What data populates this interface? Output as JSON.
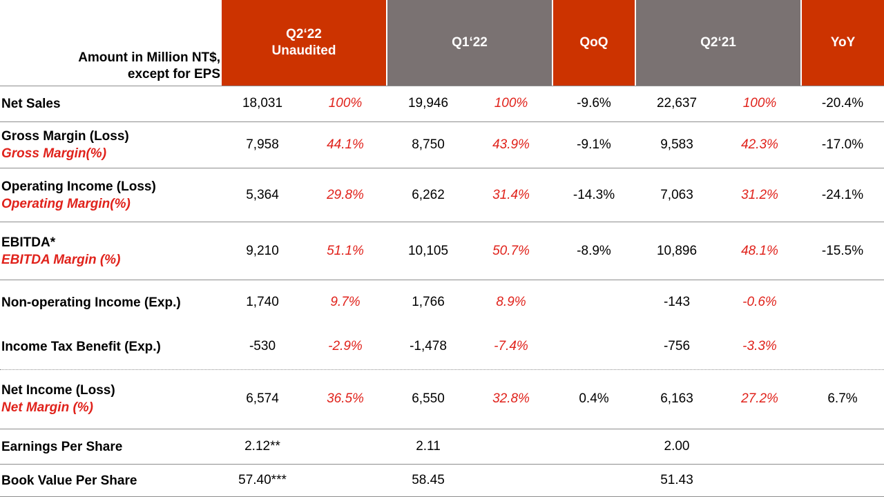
{
  "header": {
    "units_line1": "Amount in Million  NT$,",
    "units_line2": "except for EPS",
    "col_q222_line1": "Q2‘22",
    "col_q222_line2": "Unaudited",
    "col_q122": "Q1‘22",
    "col_qoq": "QoQ",
    "col_q221": "Q2‘21",
    "col_yoy": "YoY"
  },
  "colors": {
    "accent_red": "#cc3300",
    "header_gray": "#7a7272",
    "percent_red": "#e0221b"
  },
  "rows": {
    "net_sales": {
      "label": "Net Sales",
      "q222": "18,031",
      "q222_pct": "100%",
      "q122": "19,946",
      "q122_pct": "100%",
      "qoq": "-9.6%",
      "q221": "22,637",
      "q221_pct": "100%",
      "yoy": "-20.4%"
    },
    "gross_margin": {
      "label": "Gross Margin (Loss)",
      "sublabel": "Gross Margin(%)",
      "q222": "7,958",
      "q222_pct": "44.1%",
      "q122": "8,750",
      "q122_pct": "43.9%",
      "qoq": "-9.1%",
      "q221": "9,583",
      "q221_pct": "42.3%",
      "yoy": "-17.0%"
    },
    "operating_income": {
      "label": "Operating Income (Loss)",
      "sublabel": "Operating Margin(%)",
      "q222": "5,364",
      "q222_pct": "29.8%",
      "q122": "6,262",
      "q122_pct": "31.4%",
      "qoq": "-14.3%",
      "q221": "7,063",
      "q221_pct": "31.2%",
      "yoy": "-24.1%"
    },
    "ebitda": {
      "label": "EBITDA*",
      "sublabel": "EBITDA Margin (%)",
      "q222": "9,210",
      "q222_pct": "51.1%",
      "q122": "10,105",
      "q122_pct": "50.7%",
      "qoq": "-8.9%",
      "q221": "10,896",
      "q221_pct": "48.1%",
      "yoy": "-15.5%"
    },
    "non_operating": {
      "label": "Non-operating Income (Exp.)",
      "q222": "1,740",
      "q222_pct": "9.7%",
      "q122": "1,766",
      "q122_pct": "8.9%",
      "q221": "-143",
      "q221_pct": "-0.6%"
    },
    "income_tax": {
      "label": "Income Tax Benefit (Exp.)",
      "q222": "-530",
      "q222_pct": "-2.9%",
      "q122": "-1,478",
      "q122_pct": "-7.4%",
      "q221": "-756",
      "q221_pct": "-3.3%"
    },
    "net_income": {
      "label": "Net Income (Loss)",
      "sublabel": "Net Margin (%)",
      "q222": "6,574",
      "q222_pct": "36.5%",
      "q122": "6,550",
      "q122_pct": "32.8%",
      "qoq": "0.4%",
      "q221": "6,163",
      "q221_pct": "27.2%",
      "yoy": "6.7%"
    },
    "eps": {
      "label": "Earnings Per Share",
      "q222": "2.12**",
      "q122": "2.11",
      "q221": "2.00"
    },
    "bvps": {
      "label": "Book Value Per Share",
      "q222": "57.40***",
      "q122": "58.45",
      "q221": "51.43"
    }
  }
}
